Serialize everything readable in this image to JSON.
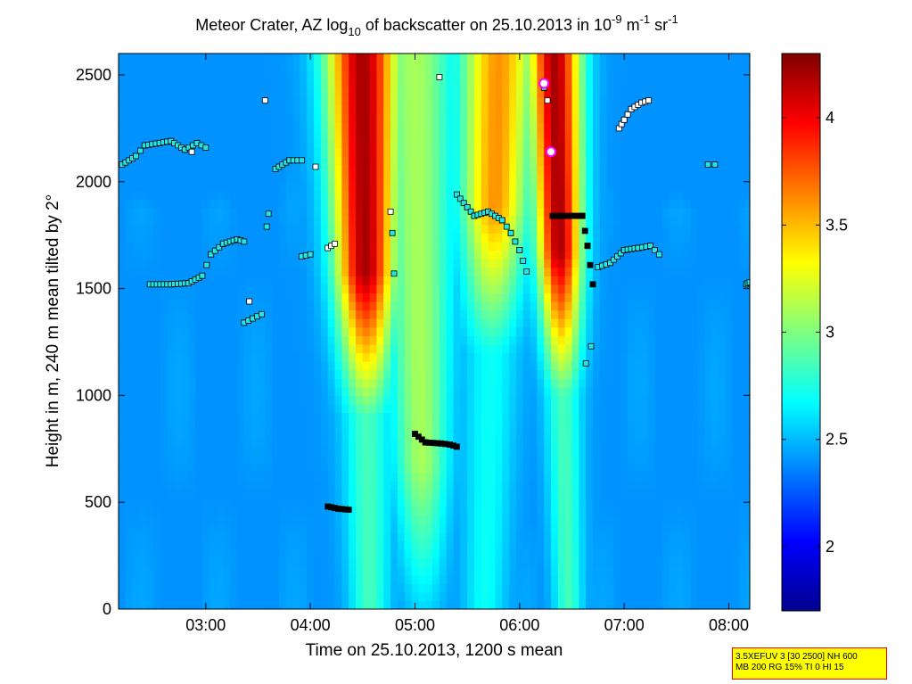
{
  "chart_data": {
    "type": "heatmap",
    "title": {
      "part1": "Meteor Crater, AZ log",
      "sub": "10",
      "part2": " of backscatter on 25.10.2013 in 10",
      "sup1": "-9",
      "part3": " m",
      "sup2": "-1",
      "part4": " sr",
      "sup3": "-1"
    },
    "xlabel": "Time on 25.10.2013, 1200 s mean",
    "ylabel": "Height in m, 240 m mean tilted by 2°",
    "xlim": [
      "02:10",
      "08:12"
    ],
    "ylim": [
      0,
      2600
    ],
    "x_ticks": [
      "03:00",
      "04:00",
      "05:00",
      "06:00",
      "07:00",
      "08:00"
    ],
    "y_ticks": [
      "0",
      "500",
      "1000",
      "1500",
      "2000",
      "2500"
    ],
    "colorbar": {
      "range": [
        1.7,
        4.3
      ],
      "ticks": [
        "2",
        "2.5",
        "3",
        "3.5",
        "4"
      ],
      "colormap": "jet",
      "colormap_stops": [
        "#00008f",
        "#0000ff",
        "#00ffff",
        "#ffff00",
        "#ff0000",
        "#800000"
      ]
    },
    "background_level": 2.4,
    "plumes": [
      {
        "t_bottom": "04:34",
        "t_top": "04:30",
        "width_min": 30,
        "peak": 4.2,
        "bottom_height": 900
      },
      {
        "t_bottom": "05:05",
        "t_top": "05:00",
        "width_min": 34,
        "peak": 3.1,
        "bottom_height": 0
      },
      {
        "t_bottom": "05:40",
        "t_top": "05:48",
        "width_min": 32,
        "peak": 3.6,
        "bottom_height": 1200
      },
      {
        "t_bottom": "06:28",
        "t_top": "06:20",
        "width_min": 22,
        "peak": 4.2,
        "bottom_height": 1000
      }
    ],
    "markers": [
      {
        "time": "06:14",
        "height": 2460,
        "style": "circle"
      },
      {
        "time": "06:18",
        "height": 2140,
        "style": "circle"
      }
    ],
    "layer_segments": [
      {
        "points": [
          [
            "02:12",
            2080
          ],
          [
            "02:20",
            2120
          ],
          [
            "02:25",
            2170
          ],
          [
            "02:40",
            2190
          ],
          [
            "02:48",
            2150
          ],
          [
            "02:55",
            2180
          ],
          [
            "03:00",
            2160
          ]
        ],
        "color": "cyan"
      },
      {
        "points": [
          [
            "02:28",
            1520
          ],
          [
            "02:40",
            1520
          ],
          [
            "02:50",
            1525
          ],
          [
            "02:58",
            1560
          ],
          [
            "03:03",
            1660
          ],
          [
            "03:10",
            1710
          ],
          [
            "03:18",
            1730
          ],
          [
            "03:22",
            1720
          ]
        ],
        "color": "cyan"
      },
      {
        "points": [
          [
            "03:22",
            1340
          ],
          [
            "03:27",
            1360
          ],
          [
            "03:32",
            1380
          ]
        ],
        "color": "cyan"
      },
      {
        "points": [
          [
            "03:40",
            2060
          ],
          [
            "03:48",
            2100
          ],
          [
            "03:55",
            2100
          ]
        ],
        "color": "cyan"
      },
      {
        "points": [
          [
            "03:55",
            1650
          ],
          [
            "04:00",
            1660
          ]
        ],
        "color": "cyan"
      },
      {
        "points": [
          [
            "04:10",
            1690
          ],
          [
            "04:14",
            1710
          ]
        ],
        "color": "white"
      },
      {
        "points": [
          [
            "04:10",
            480
          ],
          [
            "04:16",
            470
          ],
          [
            "04:22",
            465
          ]
        ],
        "color": "black"
      },
      {
        "points": [
          [
            "05:00",
            820
          ],
          [
            "05:06",
            780
          ],
          [
            "05:15",
            775
          ],
          [
            "05:20",
            770
          ],
          [
            "05:24",
            760
          ]
        ],
        "color": "black"
      },
      {
        "points": [
          [
            "05:24",
            1940
          ],
          [
            "05:30",
            1880
          ],
          [
            "05:34",
            1840
          ],
          [
            "05:42",
            1860
          ],
          [
            "05:50",
            1820
          ],
          [
            "05:55",
            1760
          ],
          [
            "06:00",
            1680
          ],
          [
            "06:04",
            1580
          ]
        ],
        "color": "cyan"
      },
      {
        "points": [
          [
            "06:19",
            1840
          ],
          [
            "06:30",
            1840
          ],
          [
            "06:36",
            1840
          ],
          [
            "06:39",
            1700
          ],
          [
            "06:42",
            1520
          ]
        ],
        "color": "black"
      },
      {
        "points": [
          [
            "06:45",
            1600
          ],
          [
            "06:52",
            1620
          ],
          [
            "07:00",
            1680
          ],
          [
            "07:08",
            1690
          ],
          [
            "07:15",
            1700
          ],
          [
            "07:20",
            1660
          ]
        ],
        "color": "cyan"
      },
      {
        "points": [
          [
            "06:57",
            2250
          ],
          [
            "07:00",
            2290
          ],
          [
            "07:04",
            2340
          ],
          [
            "07:10",
            2370
          ],
          [
            "07:14",
            2380
          ]
        ],
        "color": "white"
      },
      {
        "points": [
          [
            "08:10",
            1520
          ],
          [
            "08:12",
            1530
          ]
        ],
        "color": "cyan"
      }
    ],
    "scattered_points": [
      {
        "time": "03:34",
        "height": 2380,
        "color": "white"
      },
      {
        "time": "03:36",
        "height": 1850,
        "color": "cyan"
      },
      {
        "time": "03:35",
        "height": 1790,
        "color": "cyan"
      },
      {
        "time": "03:25",
        "height": 1440,
        "color": "white"
      },
      {
        "time": "04:03",
        "height": 2070,
        "color": "white"
      },
      {
        "time": "04:46",
        "height": 1860,
        "color": "white"
      },
      {
        "time": "04:47",
        "height": 1760,
        "color": "cyan"
      },
      {
        "time": "04:48",
        "height": 1570,
        "color": "cyan"
      },
      {
        "time": "05:14",
        "height": 2490,
        "color": "white"
      },
      {
        "time": "06:14",
        "height": 2440,
        "color": "cyan"
      },
      {
        "time": "06:16",
        "height": 2380,
        "color": "white"
      },
      {
        "time": "06:38",
        "height": 1150,
        "color": "cyan"
      },
      {
        "time": "06:41",
        "height": 1230,
        "color": "cyan"
      },
      {
        "time": "07:48",
        "height": 2080,
        "color": "cyan"
      },
      {
        "time": "07:52",
        "height": 2080,
        "color": "cyan"
      },
      {
        "time": "02:52",
        "height": 2140,
        "color": "white"
      }
    ]
  },
  "info_box": {
    "line1": "3.5XEFUV 3 [30 2500] NH 600",
    "line2": "MB 200 RG 15% TI 0 HI 15"
  }
}
